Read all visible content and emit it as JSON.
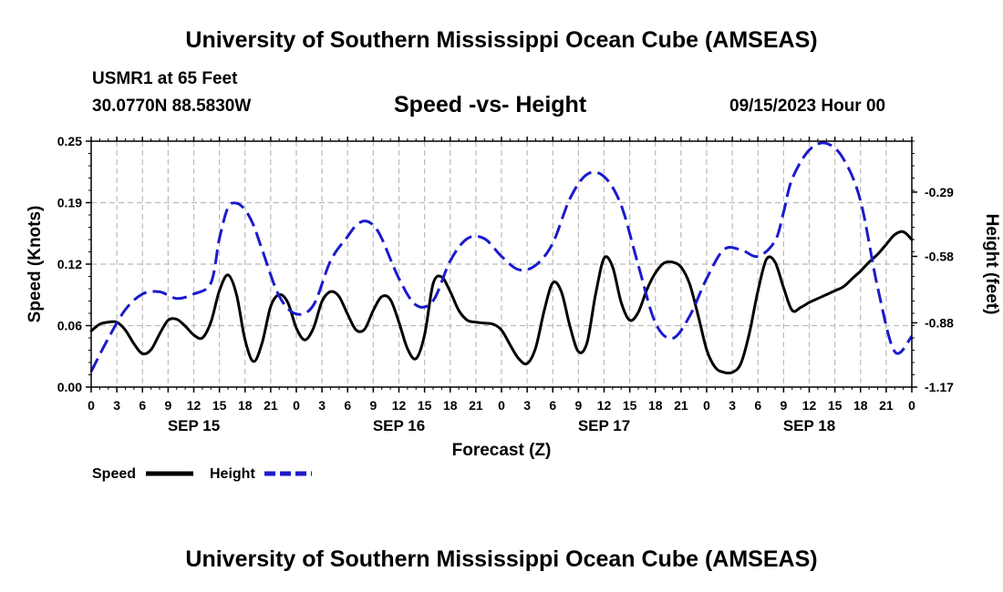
{
  "page": {
    "main_title": "University of Southern Mississippi Ocean Cube (AMSEAS)",
    "footer_title": "University of Southern Mississippi Ocean Cube (AMSEAS)",
    "station": "USMR1 at 65 Feet",
    "coordinates": "30.0770N  88.5830W",
    "datetime": "09/15/2023 Hour 00"
  },
  "chart_data": {
    "type": "line",
    "title": "Speed -vs- Height",
    "xlabel": "Forecast (Z)",
    "ylabel": "Speed (Knots)",
    "y2label": "Height (feet)",
    "x_ticks": [
      "0",
      "3",
      "6",
      "9",
      "12",
      "15",
      "18",
      "21",
      "0",
      "3",
      "6",
      "9",
      "12",
      "15",
      "18",
      "21",
      "0",
      "3",
      "6",
      "9",
      "12",
      "15",
      "18",
      "21",
      "0",
      "3",
      "6",
      "9",
      "12",
      "15",
      "18",
      "21",
      "0"
    ],
    "day_labels": [
      "SEP 15",
      "SEP 16",
      "SEP 17",
      "SEP 18"
    ],
    "ylim": [
      0.0,
      0.25
    ],
    "y_ticks": [
      "0.00",
      "0.06",
      "0.12",
      "0.19",
      "0.25"
    ],
    "y_tick_values": [
      0.0,
      0.0625,
      0.125,
      0.1875,
      0.25
    ],
    "y2lim": [
      -1.17,
      -0.06
    ],
    "y2_ticks": [
      "-1.17",
      "-0.88",
      "-0.58",
      "-0.29"
    ],
    "y2_tick_values": [
      -1.17,
      -0.88,
      -0.58,
      -0.29
    ],
    "grid": true,
    "legend": [
      "Speed",
      "Height"
    ],
    "series": [
      {
        "name": "Speed",
        "axis": "left",
        "color": "#000000",
        "style": "solid",
        "x": [
          0,
          1,
          2,
          3,
          4,
          5,
          6,
          7,
          8,
          9,
          10,
          11,
          12,
          13,
          14,
          15,
          16,
          17,
          18,
          19,
          20,
          21,
          22,
          23,
          24,
          25,
          26,
          27,
          28,
          29,
          30,
          31,
          32,
          33,
          34,
          35,
          36,
          37,
          38,
          39,
          40,
          41,
          42,
          43,
          44,
          45,
          46,
          47,
          48,
          49,
          50,
          51,
          52,
          53,
          54,
          55,
          56,
          57,
          58,
          59,
          60,
          61,
          62,
          63,
          64,
          65,
          66,
          67,
          68,
          69,
          70,
          71,
          72,
          73,
          74,
          75,
          76,
          77,
          78,
          79,
          80,
          81,
          82,
          83,
          84,
          85,
          86,
          87,
          88,
          89,
          90,
          91,
          92,
          93,
          94,
          95,
          96
        ],
        "values": [
          0.057,
          0.064,
          0.066,
          0.066,
          0.058,
          0.044,
          0.034,
          0.038,
          0.054,
          0.068,
          0.069,
          0.062,
          0.053,
          0.05,
          0.066,
          0.098,
          0.114,
          0.094,
          0.048,
          0.026,
          0.045,
          0.082,
          0.094,
          0.086,
          0.06,
          0.048,
          0.06,
          0.087,
          0.097,
          0.092,
          0.074,
          0.058,
          0.059,
          0.078,
          0.092,
          0.089,
          0.066,
          0.039,
          0.029,
          0.053,
          0.105,
          0.112,
          0.097,
          0.078,
          0.068,
          0.066,
          0.065,
          0.064,
          0.058,
          0.043,
          0.029,
          0.024,
          0.04,
          0.078,
          0.106,
          0.097,
          0.062,
          0.036,
          0.045,
          0.094,
          0.131,
          0.122,
          0.086,
          0.068,
          0.076,
          0.099,
          0.116,
          0.126,
          0.127,
          0.122,
          0.105,
          0.073,
          0.038,
          0.02,
          0.015,
          0.015,
          0.024,
          0.055,
          0.098,
          0.13,
          0.127,
          0.101,
          0.078,
          0.081,
          0.086,
          0.09,
          0.094,
          0.098,
          0.102,
          0.11,
          0.118,
          0.127,
          0.135,
          0.145,
          0.155,
          0.158,
          0.15
        ]
      },
      {
        "name": "Height",
        "axis": "right",
        "color": "#1a1acc",
        "style": "dashed",
        "x": [
          0,
          2,
          4,
          6,
          8,
          10,
          12,
          14,
          15,
          16,
          17,
          18,
          19,
          20,
          22,
          24,
          26,
          28,
          30,
          31,
          32,
          33,
          34,
          36,
          38,
          40,
          42,
          44,
          46,
          48,
          50,
          52,
          54,
          56,
          58,
          60,
          62,
          64,
          66,
          68,
          70,
          72,
          74,
          76,
          78,
          80,
          81,
          82,
          84,
          86,
          88,
          90,
          92,
          94,
          96
        ],
        "values": [
          -1.1,
          -0.95,
          -0.82,
          -0.75,
          -0.74,
          -0.77,
          -0.75,
          -0.7,
          -0.5,
          -0.36,
          -0.34,
          -0.37,
          -0.44,
          -0.55,
          -0.76,
          -0.84,
          -0.8,
          -0.6,
          -0.49,
          -0.44,
          -0.42,
          -0.44,
          -0.5,
          -0.68,
          -0.8,
          -0.78,
          -0.6,
          -0.5,
          -0.5,
          -0.58,
          -0.64,
          -0.62,
          -0.52,
          -0.32,
          -0.21,
          -0.22,
          -0.35,
          -0.62,
          -0.88,
          -0.95,
          -0.85,
          -0.68,
          -0.55,
          -0.55,
          -0.58,
          -0.51,
          -0.38,
          -0.23,
          -0.1,
          -0.07,
          -0.14,
          -0.33,
          -0.72,
          -1.01,
          -0.94
        ]
      }
    ]
  }
}
